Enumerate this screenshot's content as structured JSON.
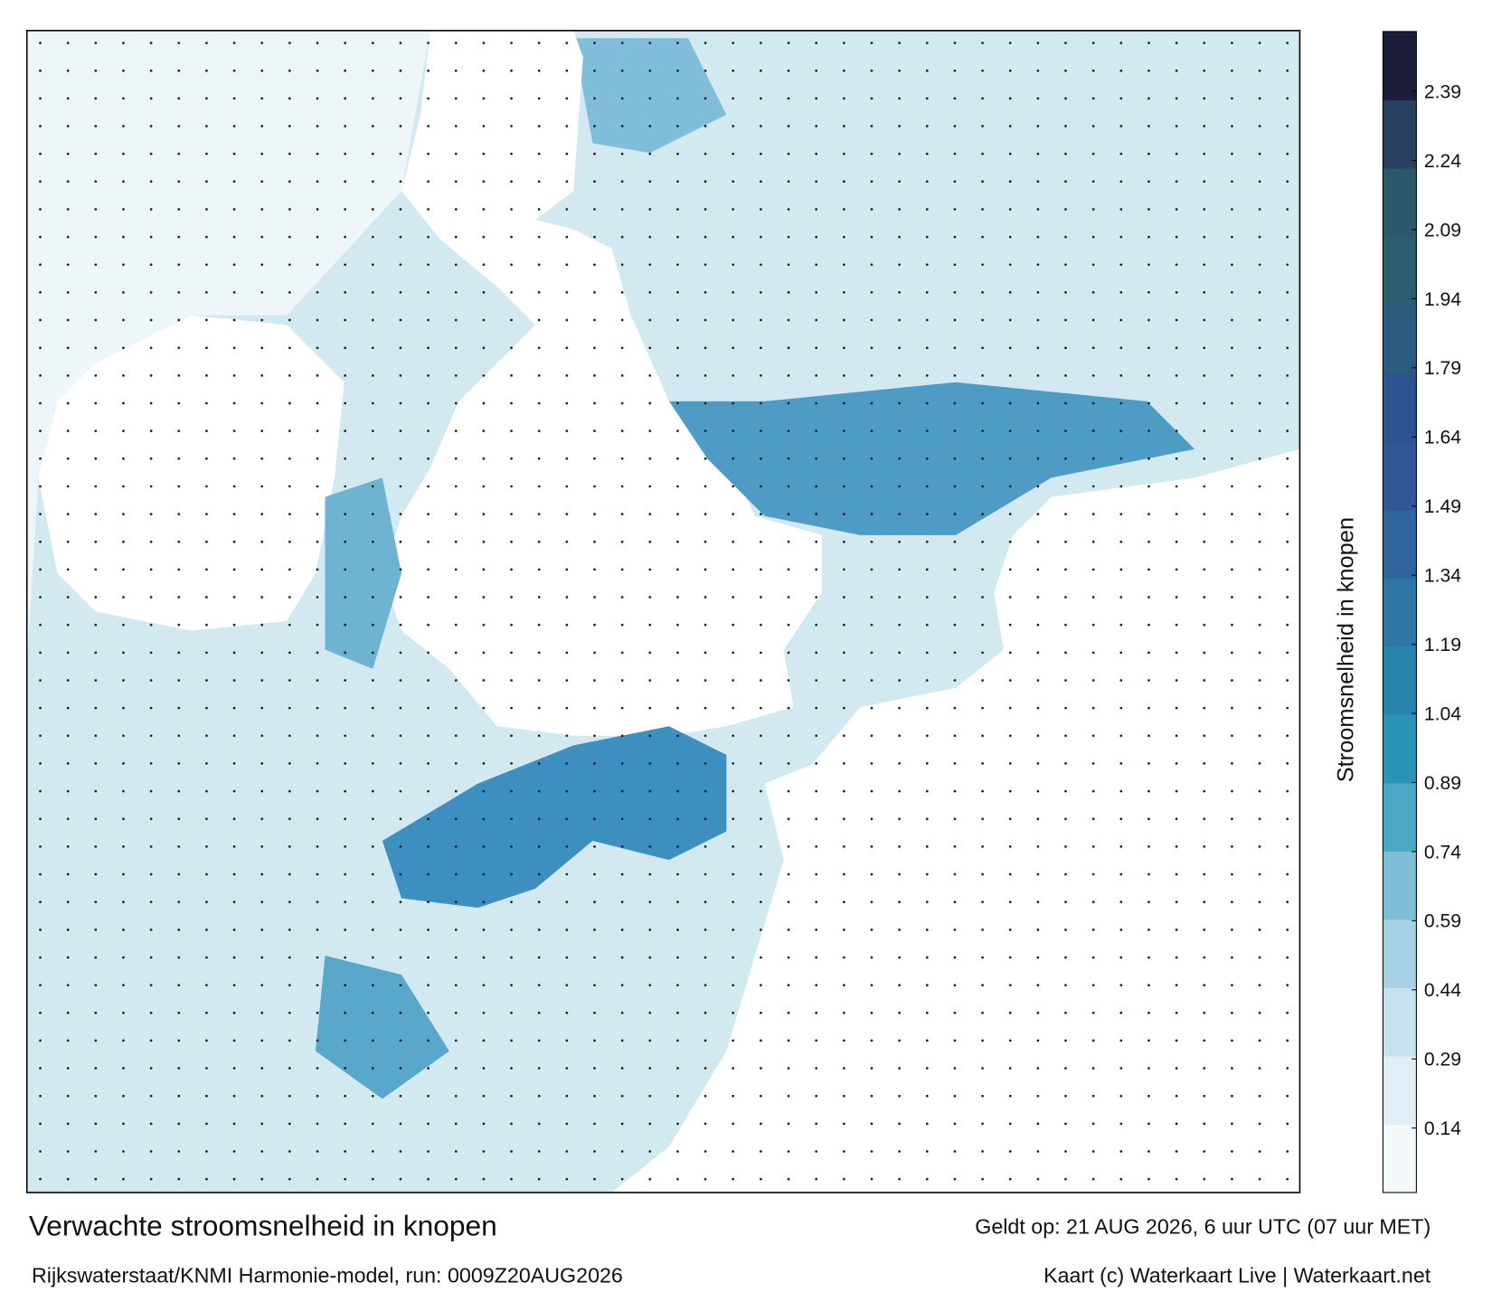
{
  "map": {
    "legend": {
      "title": "Stroomsnelheid in knopen",
      "range": [
        0,
        2.52
      ],
      "ticks": [
        0.14,
        0.29,
        0.44,
        0.59,
        0.74,
        0.89,
        1.04,
        1.19,
        1.34,
        1.49,
        1.64,
        1.79,
        1.94,
        2.09,
        2.24,
        2.39
      ],
      "colors": [
        "#f4f9fb",
        "#e0eff5",
        "#c6e2ed",
        "#a6d2e3",
        "#7ebed7",
        "#4ea6c6",
        "#2b93b8",
        "#2a85ae",
        "#2d76a6",
        "#2f659d",
        "#2f5796",
        "#2d5390",
        "#2c5b80",
        "#2b5e6f",
        "#2a5a6a",
        "#27405f",
        "#1b1d3b"
      ]
    }
  },
  "footer": {
    "title": "Verwachte stroomsnelheid in knopen",
    "valid": "Geldt op: 21 AUG 2026, 6 uur UTC (07 uur MET)",
    "source": "Rijkswaterstaat/KNMI Harmonie-model, run: 0009Z20AUG2026",
    "credit": "Kaart (c) Waterkaart Live | Waterkaart.net"
  }
}
